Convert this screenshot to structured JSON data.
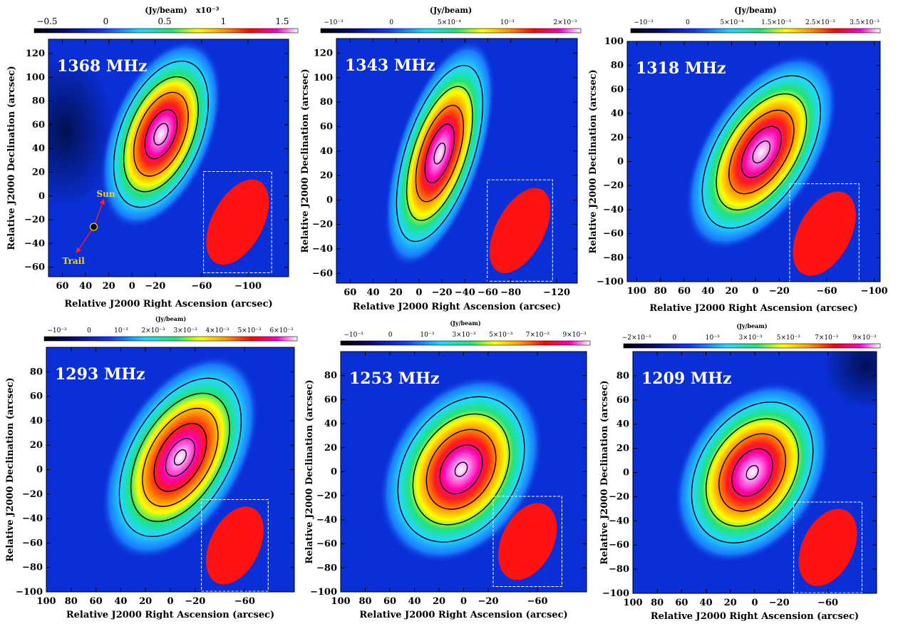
{
  "figure": {
    "colorbar_title": "(Jy/beam)",
    "xlabel": "Relative J2000 Right Ascension (arcsec)",
    "ylabel": "Relative J2000 Declination (arcsec)",
    "colors": {
      "background_map": "#0a2fd6",
      "beam_fill": "#ff1111",
      "sun_label": "#ffd700",
      "trail_label": "#ffd700",
      "arrow": "#ff2020",
      "freq_label": "#ffffff"
    }
  },
  "chart_data": [
    {
      "type": "heatmap",
      "title": "1368 MHz",
      "colorbar": {
        "label": "(Jy/beam)",
        "scale_label": "x10⁻³",
        "ticks": [
          "−0.5",
          "0",
          "0.5",
          "1",
          "1.5"
        ],
        "range": [
          -0.8,
          1.95
        ]
      },
      "xlim": [
        72,
        -135
      ],
      "ylim": [
        -68,
        132
      ],
      "xticks": [
        60,
        40,
        20,
        0,
        -20,
        -60,
        -100
      ],
      "xtick_labels": [
        "60",
        "40",
        "20",
        "0",
        "−20",
        "−60",
        "−100"
      ],
      "yticks": [
        120,
        100,
        80,
        60,
        40,
        20,
        0,
        -20,
        -40,
        -60
      ],
      "ytick_labels": [
        "120",
        "100",
        "80",
        "60",
        "40",
        "20",
        "0",
        "−20",
        "−40",
        "−60"
      ],
      "xlabel": "Relative J2000 Right Ascension (arcsec)",
      "ylabel": "Relative J2000 Declination (arcsec)",
      "peak": {
        "x": -25,
        "y": 52
      },
      "source_extent": {
        "semi_major": 62,
        "semi_minor": 33,
        "pa_deg": 22
      },
      "contour_levels": [
        0.18,
        0.36,
        0.54,
        0.74,
        0.9
      ],
      "beam": {
        "x": -91,
        "y": -22,
        "semi_major": 39,
        "semi_minor": 22,
        "pa_deg": 28
      },
      "annotations": {
        "sun": "Sun",
        "trail": "Trail",
        "sun_marker": {
          "x": 33,
          "y": -26
        }
      }
    },
    {
      "type": "heatmap",
      "title": "1343 MHz",
      "colorbar": {
        "label": "(Jy/beam)",
        "ticks": [
          "−10⁻³",
          "0",
          "5×10⁻⁴",
          "10⁻³",
          "2×10⁻³"
        ],
        "range": [
          -0.0012,
          0.0029
        ]
      },
      "xlim": [
        72,
        -138
      ],
      "ylim": [
        -68,
        132
      ],
      "xticks": [
        60,
        40,
        20,
        0,
        -20,
        -40,
        -60,
        -80,
        -120
      ],
      "xtick_labels": [
        "60",
        "40",
        "20",
        "0",
        "−20",
        "−40",
        "−60",
        "−80",
        "−120"
      ],
      "yticks": [
        120,
        100,
        80,
        60,
        40,
        20,
        0,
        -20,
        -40,
        -60
      ],
      "ytick_labels": [
        "120",
        "100",
        "80",
        "60",
        "40",
        "20",
        "0",
        "−20",
        "−40",
        "−60"
      ],
      "xlabel": "Relative J2000 Right Ascension (arcsec)",
      "ylabel": "Relative J2000 Declination (arcsec)",
      "peak": {
        "x": -18,
        "y": 38
      },
      "source_extent": {
        "semi_major": 72,
        "semi_minor": 28,
        "pa_deg": 18
      },
      "contour_levels": [
        0.18,
        0.38,
        0.56,
        0.74,
        0.92
      ],
      "beam": {
        "x": -88,
        "y": -25,
        "semi_major": 38,
        "semi_minor": 21,
        "pa_deg": 28
      }
    },
    {
      "type": "heatmap",
      "title": "1318 MHz",
      "colorbar": {
        "label": "(Jy/beam)",
        "ticks": [
          "−10⁻³",
          "0",
          "5×10⁻⁴",
          "1.5×10⁻³",
          "2.5×10⁻³",
          "3.5×10⁻³"
        ],
        "range": [
          -0.0012,
          0.0042
        ]
      },
      "xlim": [
        108,
        -105
      ],
      "ylim": [
        -100,
        100
      ],
      "xticks": [
        100,
        80,
        60,
        40,
        20,
        0,
        -20,
        -60,
        -100
      ],
      "xtick_labels": [
        "100",
        "80",
        "60",
        "40",
        "20",
        "0",
        "−20",
        "−60",
        "−100"
      ],
      "yticks": [
        100,
        80,
        60,
        40,
        20,
        0,
        -20,
        -40,
        -60,
        -80,
        -100
      ],
      "ytick_labels": [
        "100",
        "80",
        "60",
        "40",
        "20",
        "0",
        "−20",
        "−40",
        "−60",
        "−80",
        "−100"
      ],
      "xlabel": "Relative J2000 Right Ascension (arcsec)",
      "ylabel": "Relative J2000 Declination (arcsec)",
      "peak": {
        "x": -5,
        "y": 8
      },
      "source_extent": {
        "semi_major": 68,
        "semi_minor": 36,
        "pa_deg": 32
      },
      "contour_levels": [
        0.18,
        0.38,
        0.56,
        0.74,
        0.9
      ],
      "beam": {
        "x": -58,
        "y": -60,
        "semi_major": 38,
        "semi_minor": 22,
        "pa_deg": 28
      }
    },
    {
      "type": "heatmap",
      "title": "1293 MHz",
      "colorbar": {
        "label": "(Jy/beam)",
        "ticks": [
          "−10⁻³",
          "0",
          "10⁻³",
          "2×10⁻³",
          "3×10⁻³",
          "4×10⁻³",
          "5×10⁻³",
          "6×10⁻³"
        ],
        "range": [
          -0.0016,
          0.0069
        ]
      },
      "xlim": [
        100,
        -100
      ],
      "ylim": [
        -100,
        100
      ],
      "xticks": [
        100,
        80,
        60,
        40,
        20,
        0,
        -20,
        -60
      ],
      "xtick_labels": [
        "100",
        "80",
        "60",
        "40",
        "20",
        "0",
        "−20",
        "−60"
      ],
      "yticks": [
        80,
        60,
        40,
        20,
        0,
        -20,
        -40,
        -60,
        -80,
        -100
      ],
      "ytick_labels": [
        "80",
        "60",
        "40",
        "20",
        "0",
        "−20",
        "−40",
        "−60",
        "−80",
        "−100"
      ],
      "xlabel": "Relative J2000 Right Ascension (arcsec)",
      "ylabel": "Relative J2000 Declination (arcsec)",
      "peak": {
        "x": -8,
        "y": 10
      },
      "source_extent": {
        "semi_major": 68,
        "semi_minor": 38,
        "pa_deg": 30
      },
      "contour_levels": [
        0.18,
        0.34,
        0.5,
        0.66,
        0.82,
        0.94
      ],
      "beam": {
        "x": -52,
        "y": -62,
        "semi_major": 34,
        "semi_minor": 20,
        "pa_deg": 26
      }
    },
    {
      "type": "heatmap",
      "title": "1253 MHz",
      "colorbar": {
        "label": "(Jy/beam)",
        "ticks": [
          "−10⁻³",
          "0",
          "10⁻³",
          "3×10⁻³",
          "5×10⁻³",
          "7×10⁻³",
          "9×10⁻³"
        ],
        "range": [
          -0.0024,
          0.0098
        ]
      },
      "xlim": [
        100,
        -100
      ],
      "ylim": [
        -100,
        100
      ],
      "xticks": [
        100,
        80,
        60,
        40,
        20,
        0,
        -20,
        -60
      ],
      "xtick_labels": [
        "100",
        "80",
        "60",
        "40",
        "20",
        "0",
        "−20",
        "−60"
      ],
      "yticks": [
        80,
        60,
        40,
        20,
        0,
        -20,
        -40,
        -60,
        -80,
        -100
      ],
      "ytick_labels": [
        "80",
        "60",
        "40",
        "20",
        "0",
        "−20",
        "−40",
        "−60",
        "−80",
        "−100"
      ],
      "xlabel": "Relative J2000 Right Ascension (arcsec)",
      "ylabel": "Relative J2000 Declination (arcsec)",
      "peak": {
        "x": 2,
        "y": 2
      },
      "source_extent": {
        "semi_major": 62,
        "semi_minor": 44,
        "pa_deg": 32
      },
      "contour_levels": [
        0.18,
        0.38,
        0.56,
        0.74,
        0.94
      ],
      "beam": {
        "x": -52,
        "y": -58,
        "semi_major": 34,
        "semi_minor": 21,
        "pa_deg": 26
      }
    },
    {
      "type": "heatmap",
      "title": "1209 MHz",
      "colorbar": {
        "label": "(Jy/beam)",
        "ticks": [
          "−2×10⁻³",
          "0",
          "10⁻³",
          "3×10⁻³",
          "5×10⁻³",
          "7×10⁻³",
          "9×10⁻³"
        ],
        "range": [
          -0.0026,
          0.0098
        ]
      },
      "xlim": [
        100,
        -100
      ],
      "ylim": [
        -100,
        100
      ],
      "xticks": [
        100,
        80,
        60,
        40,
        20,
        0,
        -20,
        -60
      ],
      "xtick_labels": [
        "100",
        "80",
        "60",
        "40",
        "20",
        "0",
        "−20",
        "−60"
      ],
      "yticks": [
        80,
        60,
        40,
        20,
        0,
        -20,
        -40,
        -60,
        -80,
        -100
      ],
      "ytick_labels": [
        "80",
        "60",
        "40",
        "20",
        "0",
        "−20",
        "−40",
        "−60",
        "−80",
        "−100"
      ],
      "xlabel": "Relative J2000 Right Ascension (arcsec)",
      "ylabel": "Relative J2000 Declination (arcsec)",
      "peak": {
        "x": 2,
        "y": 0
      },
      "source_extent": {
        "semi_major": 60,
        "semi_minor": 42,
        "pa_deg": 32
      },
      "contour_levels": [
        0.18,
        0.38,
        0.56,
        0.74,
        0.94
      ],
      "beam": {
        "x": -60,
        "y": -62,
        "semi_major": 34,
        "semi_minor": 21,
        "pa_deg": 26
      }
    }
  ]
}
